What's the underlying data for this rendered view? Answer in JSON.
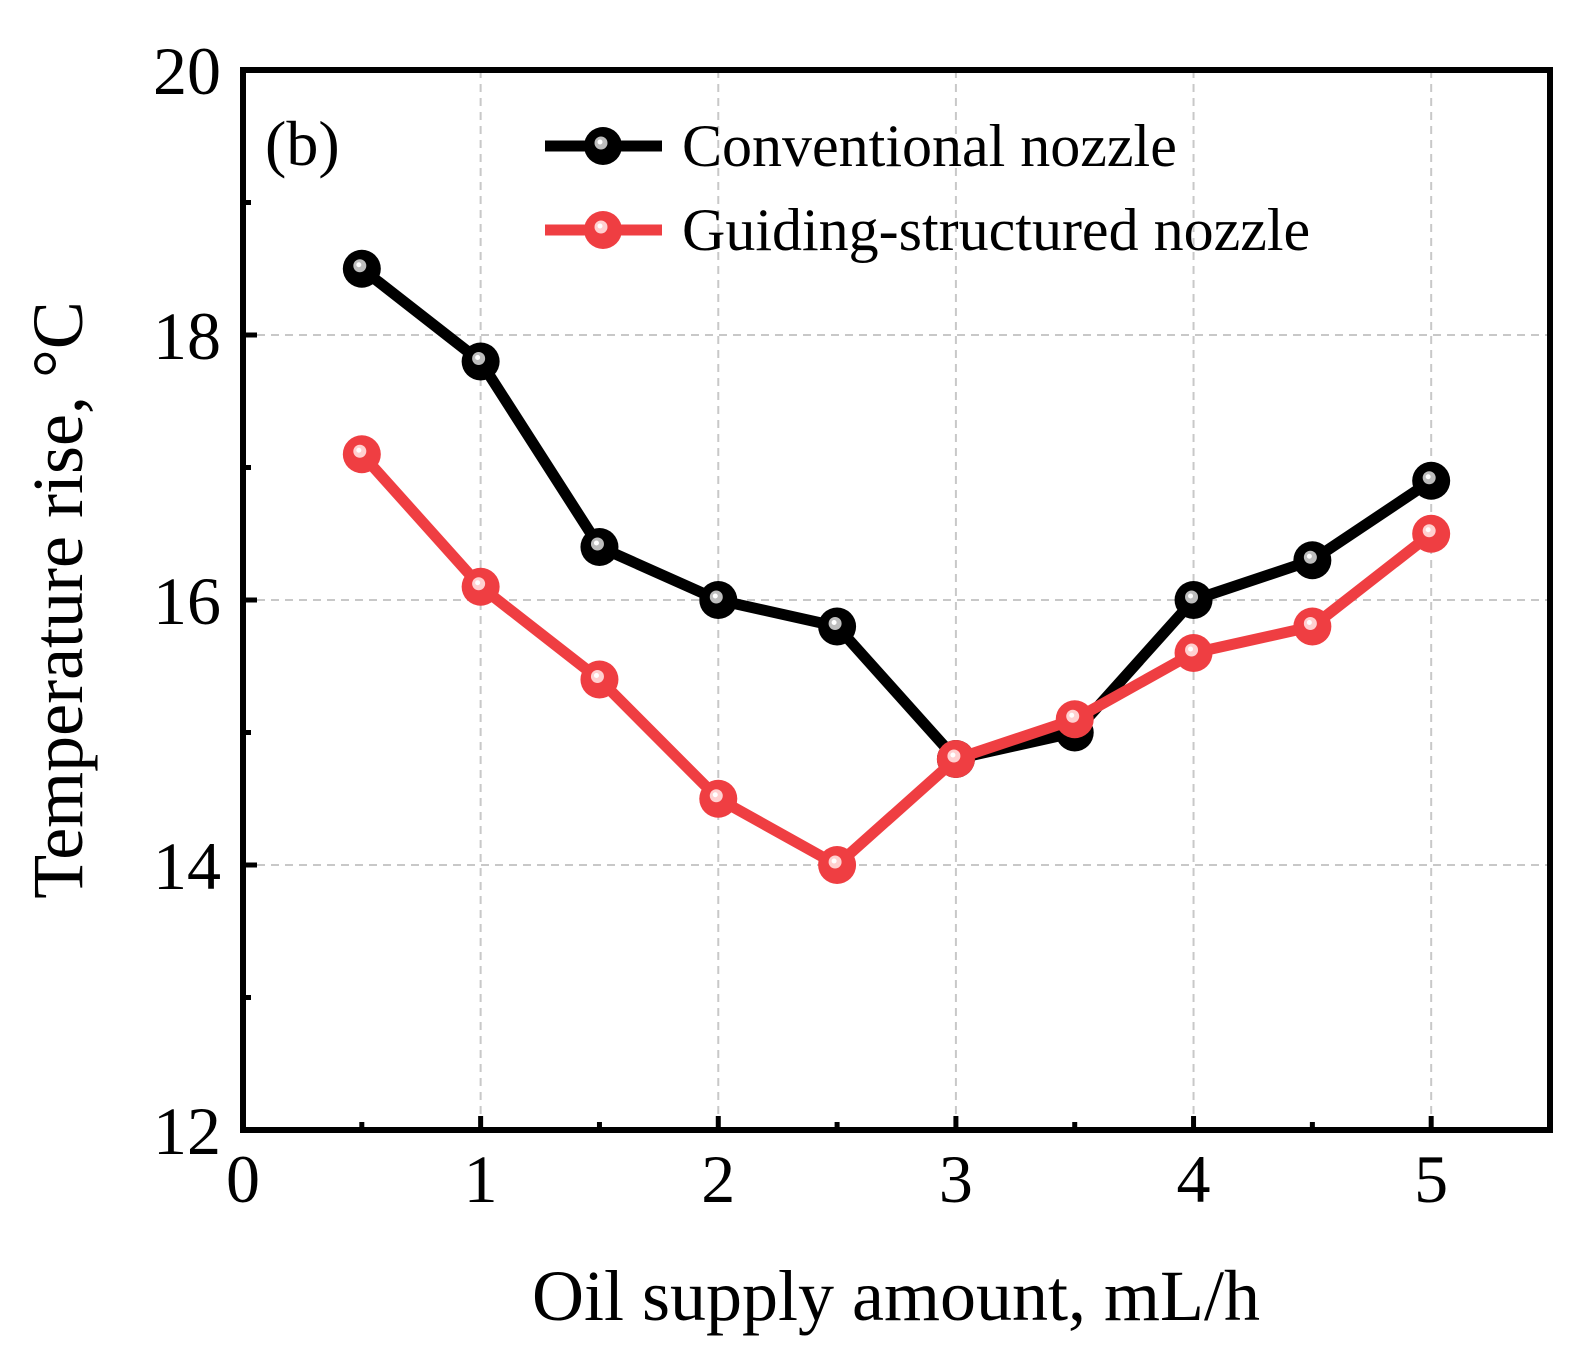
{
  "chart_data": {
    "type": "line",
    "panel_label": "(b)",
    "xlabel": "Oil supply amount, mL/h",
    "ylabel": "Temperature rise, °C",
    "xlim": [
      0,
      5.5
    ],
    "ylim": [
      12,
      20
    ],
    "x_ticks": [
      0,
      1,
      2,
      3,
      4,
      5
    ],
    "x_tick_labels": [
      "0",
      "1",
      "2",
      "3",
      "4",
      "5"
    ],
    "y_ticks": [
      12,
      14,
      16,
      18,
      20
    ],
    "y_tick_labels": [
      "12",
      "14",
      "16",
      "18",
      "20"
    ],
    "x_minor_ticks": [
      0.5,
      1.5,
      2.5,
      3.5,
      4.5
    ],
    "y_minor_ticks": [
      13,
      15,
      17,
      19
    ],
    "grid": true,
    "legend_position": "top-right",
    "x": [
      0.5,
      1.0,
      1.5,
      2.0,
      2.5,
      3.0,
      3.5,
      4.0,
      4.5,
      5.0
    ],
    "series": [
      {
        "name": "Conventional nozzle",
        "color": "#000000",
        "highlight": "#bdbdbd",
        "values": [
          18.5,
          17.8,
          16.4,
          16.0,
          15.8,
          14.8,
          15.0,
          16.0,
          16.3,
          16.9
        ]
      },
      {
        "name": "Guiding-structured nozzle",
        "color": "#ef3e42",
        "highlight": "#ffd0d0",
        "values": [
          17.1,
          16.1,
          15.4,
          14.5,
          14.0,
          14.8,
          15.1,
          15.6,
          15.8,
          16.5
        ]
      }
    ]
  }
}
